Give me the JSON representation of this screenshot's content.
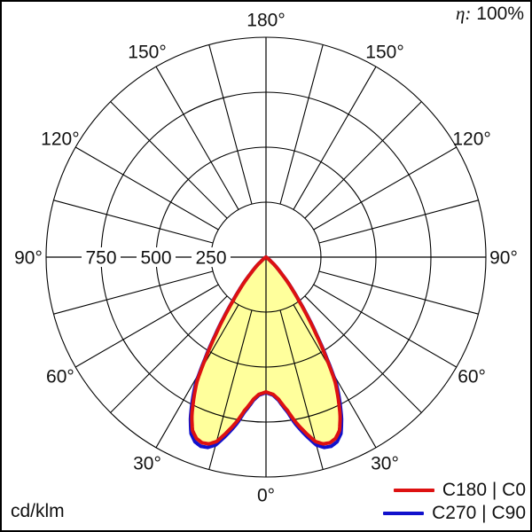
{
  "header": {
    "efficiency_symbol": "η:",
    "efficiency_value": "100%"
  },
  "footer": {
    "unit_label": "cd/klm"
  },
  "legend": {
    "items": [
      {
        "label": "C180 | C0",
        "color": "#dd1111"
      },
      {
        "label": "C270 | C90",
        "color": "#1111cc"
      }
    ]
  },
  "colors": {
    "curve_c0": "#dd1111",
    "curve_c90": "#1111cc",
    "fill": "#ffff9c",
    "grid": "#000000",
    "background": "#ffffff"
  },
  "chart_data": {
    "type": "polar",
    "subtype": "luminous-intensity-distribution",
    "title": "",
    "unit": "cd/klm",
    "efficiency_percent": 100,
    "rmax": 1000,
    "angle_step_deg": 15,
    "angle_tick_labels": [
      {
        "angle": 0,
        "text": "0°"
      },
      {
        "angle": 30,
        "text": "30°"
      },
      {
        "angle": 60,
        "text": "60°"
      },
      {
        "angle": 90,
        "text": "90°"
      },
      {
        "angle": 120,
        "text": "120°"
      },
      {
        "angle": 150,
        "text": "150°"
      },
      {
        "angle": 180,
        "text": "180°"
      }
    ],
    "radial_ticks": [
      {
        "value": 250,
        "label": "250"
      },
      {
        "value": 500,
        "label": "500"
      },
      {
        "value": 750,
        "label": "750"
      },
      {
        "value": 1000,
        "label": ""
      }
    ],
    "fill_color": "#ffff9c",
    "grid_color": "#000000",
    "series": [
      {
        "name": "C180 | C0",
        "color": "#dd1111",
        "symmetric": true,
        "gamma_unit": "deg",
        "points": [
          [
            0,
            613
          ],
          [
            3,
            625
          ],
          [
            5,
            648
          ],
          [
            8,
            705
          ],
          [
            10,
            758
          ],
          [
            13,
            825
          ],
          [
            15,
            868
          ],
          [
            17,
            888
          ],
          [
            19,
            893
          ],
          [
            21,
            883
          ],
          [
            23,
            856
          ],
          [
            25,
            798
          ],
          [
            27,
            725
          ],
          [
            29,
            648
          ],
          [
            31,
            528
          ],
          [
            33,
            420
          ],
          [
            35,
            328
          ],
          [
            37,
            250
          ],
          [
            39,
            193
          ],
          [
            41,
            148
          ],
          [
            43,
            104
          ],
          [
            46,
            66
          ],
          [
            50,
            26
          ],
          [
            55,
            7
          ],
          [
            60,
            0
          ],
          [
            90,
            0
          ]
        ]
      },
      {
        "name": "C270 | C90",
        "color": "#1111cc",
        "symmetric": true,
        "gamma_unit": "deg",
        "points": [
          [
            0,
            616
          ],
          [
            3,
            629
          ],
          [
            5,
            653
          ],
          [
            8,
            713
          ],
          [
            10,
            770
          ],
          [
            13,
            840
          ],
          [
            15,
            884
          ],
          [
            17,
            905
          ],
          [
            19,
            910
          ],
          [
            21,
            900
          ],
          [
            23,
            872
          ],
          [
            25,
            813
          ],
          [
            27,
            740
          ],
          [
            29,
            661
          ],
          [
            31,
            539
          ],
          [
            33,
            429
          ],
          [
            35,
            335
          ],
          [
            37,
            256
          ],
          [
            39,
            197
          ],
          [
            41,
            151
          ],
          [
            43,
            106
          ],
          [
            46,
            67
          ],
          [
            50,
            27
          ],
          [
            55,
            7
          ],
          [
            60,
            0
          ],
          [
            90,
            0
          ]
        ]
      }
    ]
  }
}
